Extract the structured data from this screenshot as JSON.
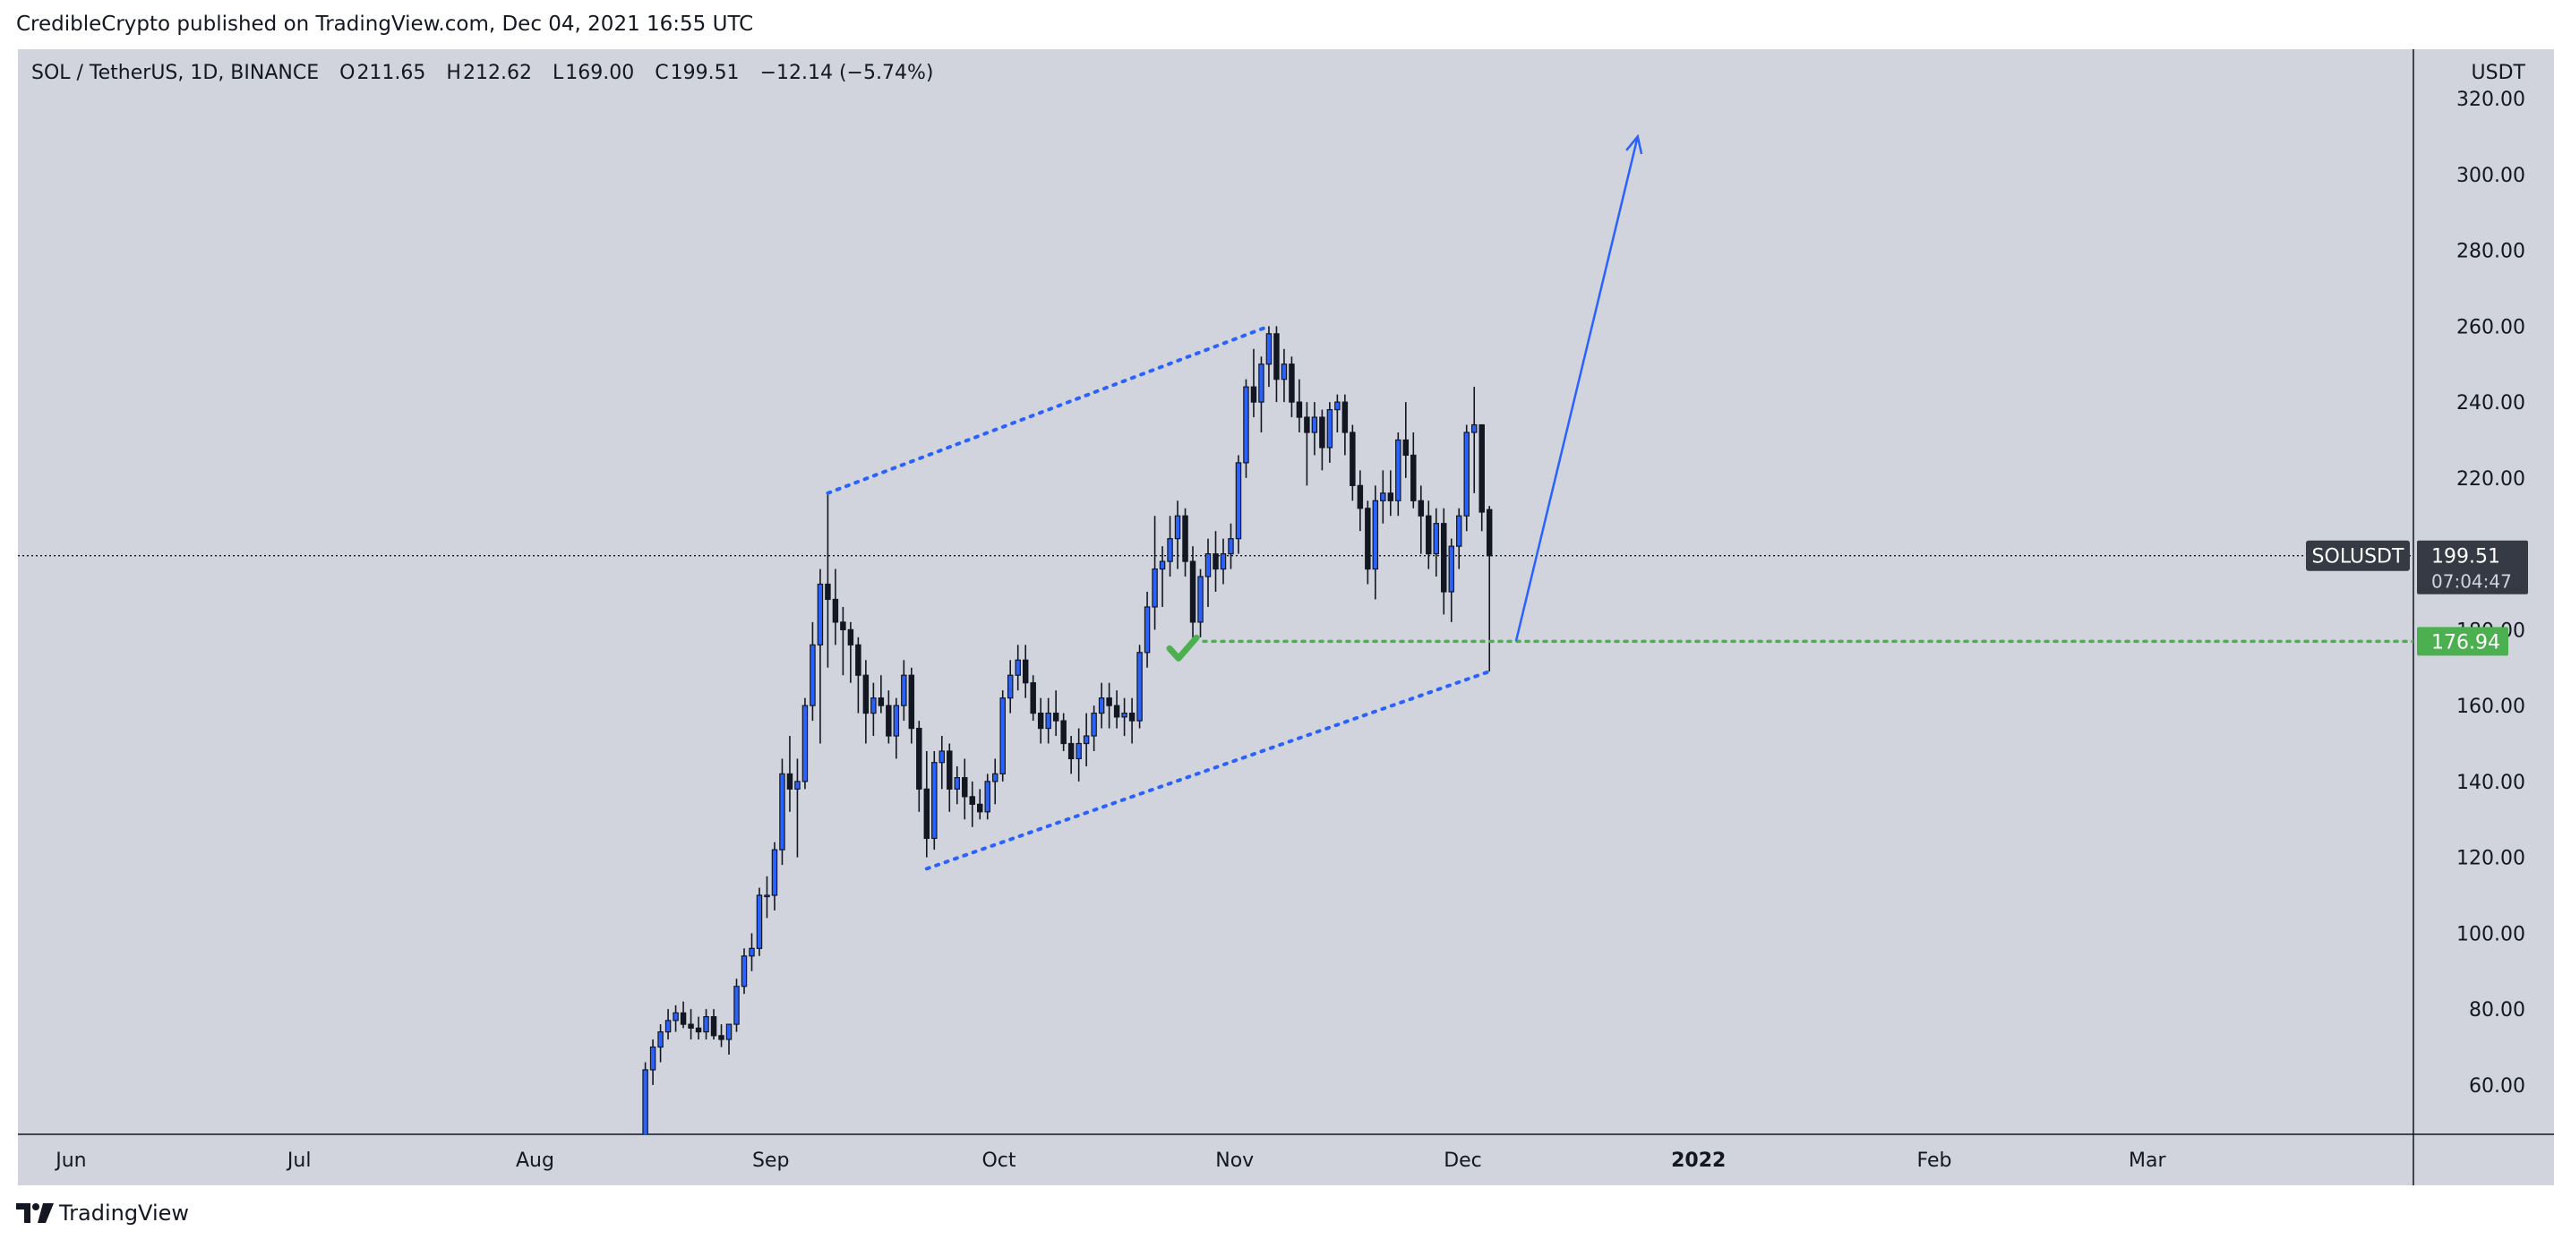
{
  "header": {
    "publisher_line": "CredibleCrypto published on TradingView.com, Dec 04, 2021 16:55 UTC"
  },
  "legend": {
    "symbol": "SOL / TetherUS, 1D, BINANCE",
    "open_label": "O",
    "open": "211.65",
    "high_label": "H",
    "high": "212.62",
    "low_label": "L",
    "low": "169.00",
    "close_label": "C",
    "close": "199.51",
    "change": "−12.14 (−5.74%)"
  },
  "price_axis": {
    "unit": "USDT"
  },
  "footer": {
    "brand": "TradingView"
  },
  "colors": {
    "background": "#d1d4dc",
    "up_candle": "#2962ff",
    "down_candle": "#131722",
    "channel_line": "#2962ff",
    "support_line": "#4caf50",
    "check_mark": "#4caf50"
  },
  "chart_data": {
    "type": "candlestick",
    "grid": false,
    "x_axis": {
      "type": "date",
      "tick_labels": [
        "Jun",
        "Jul",
        "Aug",
        "Sep",
        "Oct",
        "Nov",
        "Dec",
        "2022",
        "Feb",
        "Mar"
      ],
      "tick_dates": [
        "2021-06-01",
        "2021-07-01",
        "2021-08-01",
        "2021-09-01",
        "2021-10-01",
        "2021-11-01",
        "2021-12-01",
        "2022-01-01",
        "2022-02-01",
        "2022-03-01"
      ],
      "range": [
        "2021-05-25",
        "2022-04-05"
      ]
    },
    "y_axis": {
      "position": "right",
      "tick_labels": [
        "60.00",
        "80.00",
        "100.00",
        "120.00",
        "140.00",
        "160.00",
        "180.00",
        "200.00",
        "220.00",
        "240.00",
        "260.00",
        "280.00",
        "300.00",
        "320.00"
      ],
      "tick_values": [
        60,
        80,
        100,
        120,
        140,
        160,
        180,
        200,
        220,
        240,
        260,
        280,
        300,
        320
      ],
      "range": [
        47,
        333
      ]
    },
    "series": {
      "points": [
        [
          "2021-08-15",
          44,
          66,
          42,
          64
        ],
        [
          "2021-08-16",
          64,
          72,
          60,
          70
        ],
        [
          "2021-08-17",
          70,
          76,
          66,
          74
        ],
        [
          "2021-08-18",
          74,
          80,
          72,
          77
        ],
        [
          "2021-08-19",
          77,
          81,
          74,
          79
        ],
        [
          "2021-08-20",
          79,
          82,
          75,
          76
        ],
        [
          "2021-08-21",
          76,
          80,
          72,
          75
        ],
        [
          "2021-08-22",
          75,
          78,
          72,
          74
        ],
        [
          "2021-08-23",
          74,
          80,
          72,
          78
        ],
        [
          "2021-08-24",
          78,
          80,
          72,
          73
        ],
        [
          "2021-08-25",
          73,
          76,
          70,
          72
        ],
        [
          "2021-08-26",
          72,
          76,
          68,
          76
        ],
        [
          "2021-08-27",
          76,
          88,
          74,
          86
        ],
        [
          "2021-08-28",
          86,
          96,
          84,
          94
        ],
        [
          "2021-08-29",
          94,
          100,
          90,
          96
        ],
        [
          "2021-08-30",
          96,
          112,
          94,
          110
        ],
        [
          "2021-08-31",
          110,
          115,
          104,
          110
        ],
        [
          "2021-09-01",
          110,
          124,
          106,
          122
        ],
        [
          "2021-09-02",
          122,
          146,
          118,
          142
        ],
        [
          "2021-09-03",
          142,
          152,
          132,
          138
        ],
        [
          "2021-09-04",
          138,
          146,
          120,
          140
        ],
        [
          "2021-09-05",
          140,
          162,
          138,
          160
        ],
        [
          "2021-09-06",
          160,
          182,
          156,
          176
        ],
        [
          "2021-09-07",
          176,
          196,
          150,
          192
        ],
        [
          "2021-09-08",
          192,
          216,
          170,
          188
        ],
        [
          "2021-09-09",
          188,
          196,
          176,
          182
        ],
        [
          "2021-09-10",
          182,
          186,
          168,
          180
        ],
        [
          "2021-09-11",
          180,
          182,
          166,
          176
        ],
        [
          "2021-09-12",
          176,
          178,
          158,
          168
        ],
        [
          "2021-09-13",
          168,
          172,
          150,
          158
        ],
        [
          "2021-09-14",
          158,
          166,
          152,
          162
        ],
        [
          "2021-09-15",
          162,
          168,
          158,
          160
        ],
        [
          "2021-09-16",
          160,
          164,
          150,
          152
        ],
        [
          "2021-09-17",
          152,
          162,
          146,
          160
        ],
        [
          "2021-09-18",
          160,
          172,
          156,
          168
        ],
        [
          "2021-09-19",
          168,
          170,
          150,
          154
        ],
        [
          "2021-09-20",
          154,
          156,
          132,
          138
        ],
        [
          "2021-09-21",
          138,
          148,
          120,
          125
        ],
        [
          "2021-09-22",
          125,
          148,
          122,
          145
        ],
        [
          "2021-09-23",
          145,
          152,
          138,
          148
        ],
        [
          "2021-09-24",
          148,
          150,
          132,
          138
        ],
        [
          "2021-09-25",
          138,
          144,
          134,
          141
        ],
        [
          "2021-09-26",
          141,
          146,
          130,
          136
        ],
        [
          "2021-09-27",
          136,
          140,
          128,
          134
        ],
        [
          "2021-09-28",
          134,
          138,
          130,
          132
        ],
        [
          "2021-09-29",
          132,
          142,
          130,
          140
        ],
        [
          "2021-09-30",
          140,
          146,
          134,
          142
        ],
        [
          "2021-10-01",
          142,
          164,
          140,
          162
        ],
        [
          "2021-10-02",
          162,
          172,
          158,
          168
        ],
        [
          "2021-10-03",
          168,
          176,
          164,
          172
        ],
        [
          "2021-10-04",
          172,
          176,
          162,
          166
        ],
        [
          "2021-10-05",
          166,
          168,
          156,
          158
        ],
        [
          "2021-10-06",
          158,
          162,
          150,
          154
        ],
        [
          "2021-10-07",
          154,
          162,
          150,
          158
        ],
        [
          "2021-10-08",
          158,
          164,
          152,
          156
        ],
        [
          "2021-10-09",
          156,
          158,
          148,
          150
        ],
        [
          "2021-10-10",
          150,
          152,
          142,
          146
        ],
        [
          "2021-10-11",
          146,
          154,
          140,
          150
        ],
        [
          "2021-10-12",
          150,
          158,
          144,
          152
        ],
        [
          "2021-10-13",
          152,
          160,
          148,
          158
        ],
        [
          "2021-10-14",
          158,
          166,
          154,
          162
        ],
        [
          "2021-10-15",
          162,
          166,
          154,
          160
        ],
        [
          "2021-10-16",
          160,
          164,
          154,
          157
        ],
        [
          "2021-10-17",
          157,
          162,
          152,
          158
        ],
        [
          "2021-10-18",
          158,
          162,
          150,
          156
        ],
        [
          "2021-10-19",
          156,
          176,
          154,
          174
        ],
        [
          "2021-10-20",
          174,
          190,
          170,
          186
        ],
        [
          "2021-10-21",
          186,
          210,
          180,
          196
        ],
        [
          "2021-10-22",
          196,
          202,
          186,
          198
        ],
        [
          "2021-10-23",
          198,
          210,
          194,
          204
        ],
        [
          "2021-10-24",
          204,
          214,
          196,
          210
        ],
        [
          "2021-10-25",
          210,
          212,
          194,
          198
        ],
        [
          "2021-10-26",
          198,
          202,
          176,
          182
        ],
        [
          "2021-10-27",
          182,
          196,
          178,
          194
        ],
        [
          "2021-10-28",
          194,
          204,
          186,
          200
        ],
        [
          "2021-10-29",
          200,
          206,
          190,
          196
        ],
        [
          "2021-10-30",
          196,
          204,
          192,
          200
        ],
        [
          "2021-10-31",
          200,
          208,
          196,
          204
        ],
        [
          "2021-11-01",
          204,
          226,
          200,
          224
        ],
        [
          "2021-11-02",
          224,
          246,
          220,
          244
        ],
        [
          "2021-11-03",
          244,
          254,
          236,
          240
        ],
        [
          "2021-11-04",
          240,
          252,
          232,
          250
        ],
        [
          "2021-11-05",
          250,
          260,
          244,
          258
        ],
        [
          "2021-11-06",
          258,
          260,
          240,
          246
        ],
        [
          "2021-11-07",
          246,
          254,
          240,
          250
        ],
        [
          "2021-11-08",
          250,
          252,
          236,
          240
        ],
        [
          "2021-11-09",
          240,
          246,
          232,
          236
        ],
        [
          "2021-11-10",
          236,
          240,
          218,
          232
        ],
        [
          "2021-11-11",
          232,
          240,
          226,
          236
        ],
        [
          "2021-11-12",
          236,
          238,
          222,
          228
        ],
        [
          "2021-11-13",
          228,
          240,
          224,
          238
        ],
        [
          "2021-11-14",
          238,
          242,
          232,
          240
        ],
        [
          "2021-11-15",
          240,
          242,
          226,
          232
        ],
        [
          "2021-11-16",
          232,
          234,
          214,
          218
        ],
        [
          "2021-11-17",
          218,
          222,
          206,
          212
        ],
        [
          "2021-11-18",
          212,
          214,
          192,
          196
        ],
        [
          "2021-11-19",
          196,
          218,
          188,
          214
        ],
        [
          "2021-11-20",
          214,
          222,
          208,
          216
        ],
        [
          "2021-11-21",
          216,
          222,
          210,
          214
        ],
        [
          "2021-11-22",
          214,
          232,
          210,
          230
        ],
        [
          "2021-11-23",
          230,
          240,
          220,
          226
        ],
        [
          "2021-11-24",
          226,
          232,
          212,
          214
        ],
        [
          "2021-11-25",
          214,
          218,
          200,
          210
        ],
        [
          "2021-11-26",
          210,
          214,
          196,
          200
        ],
        [
          "2021-11-27",
          200,
          212,
          194,
          208
        ],
        [
          "2021-11-28",
          208,
          212,
          184,
          190
        ],
        [
          "2021-11-29",
          190,
          204,
          182,
          202
        ],
        [
          "2021-11-30",
          202,
          212,
          196,
          210
        ],
        [
          "2021-12-01",
          210,
          234,
          206,
          232
        ],
        [
          "2021-12-02",
          232,
          244,
          216,
          234
        ],
        [
          "2021-12-03",
          234,
          234,
          206,
          211
        ],
        [
          "2021-12-04",
          211.65,
          212.62,
          169.0,
          199.51
        ]
      ]
    },
    "drawings": {
      "channel_upper": [
        [
          "2021-09-08",
          216
        ],
        [
          "2021-11-05",
          260
        ]
      ],
      "channel_lower": [
        [
          "2021-09-21",
          117
        ],
        [
          "2021-12-04",
          169
        ]
      ],
      "projection_arrow": [
        [
          "2021-12-08",
          177
        ],
        [
          "2021-12-24",
          310
        ]
      ],
      "support_level": 176.94,
      "check_mark": [
        "2021-10-26",
        176.94
      ]
    },
    "last_price": {
      "symbol": "SOLUSDT",
      "value": "199.51",
      "countdown": "07:04:47"
    },
    "support_label": "176.94"
  }
}
